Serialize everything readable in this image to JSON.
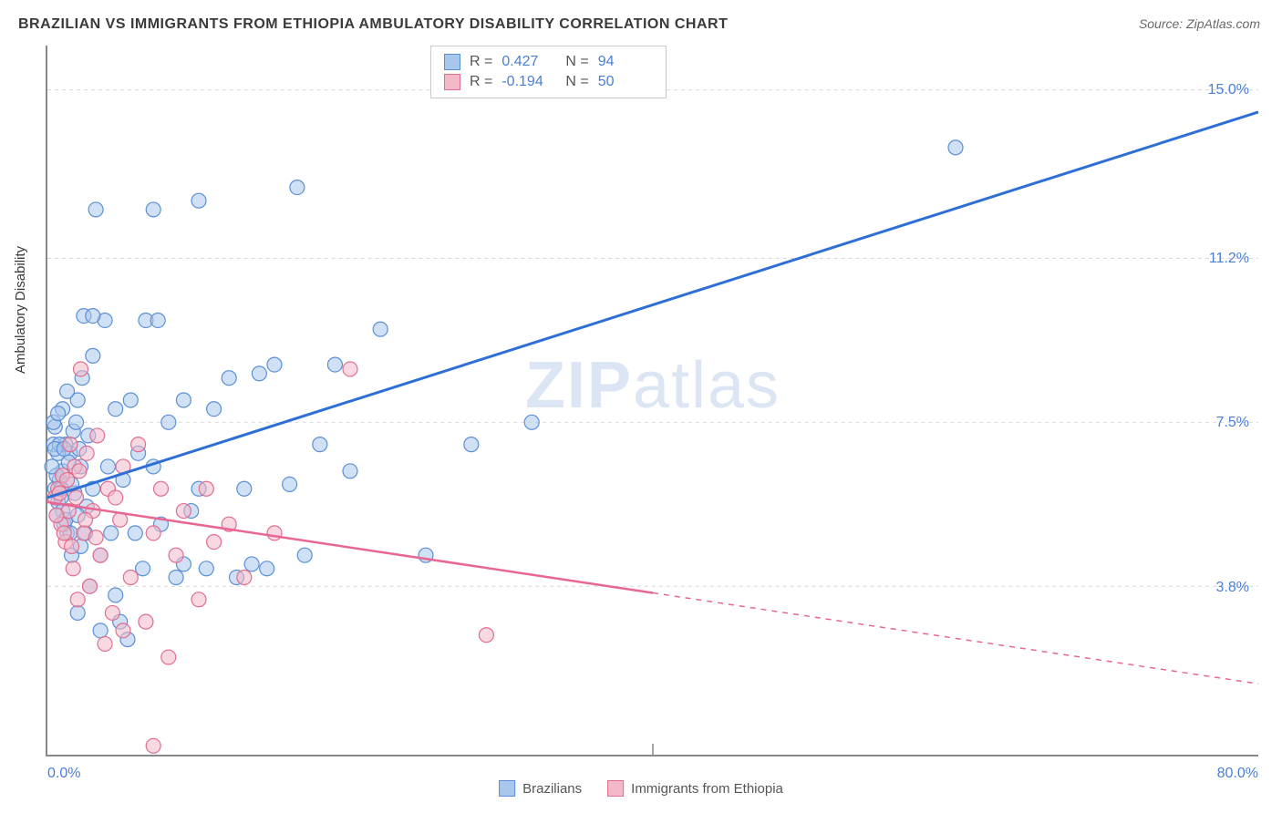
{
  "title": "BRAZILIAN VS IMMIGRANTS FROM ETHIOPIA AMBULATORY DISABILITY CORRELATION CHART",
  "source": "Source: ZipAtlas.com",
  "y_axis_label": "Ambulatory Disability",
  "watermark_a": "ZIP",
  "watermark_b": "atlas",
  "chart": {
    "type": "scatter",
    "xlim": [
      0,
      80
    ],
    "ylim": [
      0,
      16
    ],
    "x_ticks": [
      0,
      40,
      80
    ],
    "x_tick_labels": [
      "0.0%",
      "",
      "80.0%"
    ],
    "y_ticks": [
      3.8,
      7.5,
      11.2,
      15.0
    ],
    "y_tick_labels": [
      "3.8%",
      "7.5%",
      "11.2%",
      "15.0%"
    ],
    "grid_color": "#d5d5d5",
    "background_color": "#ffffff",
    "axis_color": "#888888",
    "label_color": "#4a7fd6",
    "series": [
      {
        "name": "Brazilians",
        "color_fill": "#a9c6ec",
        "color_stroke": "#5b8fd6",
        "marker_radius": 8,
        "opacity": 0.55,
        "regression": {
          "x1": 0,
          "y1": 5.8,
          "x2": 80,
          "y2": 14.5,
          "solid_to_x": 80,
          "color": "#2e6fd6",
          "width": 3
        },
        "R": "0.427",
        "N": "94",
        "points": [
          [
            0.5,
            6.0
          ],
          [
            0.7,
            5.7
          ],
          [
            0.8,
            6.2
          ],
          [
            1.0,
            5.5
          ],
          [
            1.0,
            6.4
          ],
          [
            1.2,
            7.0
          ],
          [
            1.3,
            5.0
          ],
          [
            1.5,
            6.8
          ],
          [
            1.6,
            4.5
          ],
          [
            1.7,
            7.3
          ],
          [
            1.8,
            5.9
          ],
          [
            2.0,
            8.0
          ],
          [
            2.0,
            3.2
          ],
          [
            2.2,
            6.5
          ],
          [
            2.4,
            9.9
          ],
          [
            2.5,
            5.0
          ],
          [
            2.7,
            7.2
          ],
          [
            2.8,
            3.8
          ],
          [
            3.0,
            6.0
          ],
          [
            3.2,
            12.3
          ],
          [
            3.5,
            4.5
          ],
          [
            3.5,
            2.8
          ],
          [
            3.8,
            9.8
          ],
          [
            4.0,
            6.5
          ],
          [
            4.2,
            5.0
          ],
          [
            4.5,
            7.8
          ],
          [
            4.8,
            3.0
          ],
          [
            5.0,
            6.2
          ],
          [
            5.3,
            2.6
          ],
          [
            5.5,
            8.0
          ],
          [
            5.8,
            5.0
          ],
          [
            6.0,
            6.8
          ],
          [
            6.3,
            4.2
          ],
          [
            6.5,
            9.8
          ],
          [
            7.0,
            12.3
          ],
          [
            7.0,
            6.5
          ],
          [
            7.5,
            5.2
          ],
          [
            8.0,
            7.5
          ],
          [
            8.5,
            4.0
          ],
          [
            9.0,
            8.0
          ],
          [
            9.5,
            5.5
          ],
          [
            10.0,
            12.5
          ],
          [
            10.0,
            6.0
          ],
          [
            10.5,
            4.2
          ],
          [
            11.0,
            7.8
          ],
          [
            12.0,
            8.5
          ],
          [
            12.5,
            4.0
          ],
          [
            13.0,
            6.0
          ],
          [
            14.0,
            8.6
          ],
          [
            14.5,
            4.2
          ],
          [
            15.0,
            8.8
          ],
          [
            16.0,
            6.1
          ],
          [
            16.5,
            12.8
          ],
          [
            17.0,
            4.5
          ],
          [
            18.0,
            7.0
          ],
          [
            19.0,
            8.8
          ],
          [
            20.0,
            6.4
          ],
          [
            22.0,
            9.6
          ],
          [
            25.0,
            4.5
          ],
          [
            28.0,
            7.0
          ],
          [
            32.0,
            7.5
          ],
          [
            60.0,
            13.7
          ],
          [
            1.1,
            5.2
          ],
          [
            1.4,
            6.6
          ],
          [
            0.6,
            6.3
          ],
          [
            0.9,
            5.8
          ],
          [
            1.6,
            6.1
          ],
          [
            2.1,
            6.9
          ],
          [
            2.6,
            5.6
          ],
          [
            0.4,
            7.0
          ],
          [
            0.5,
            7.4
          ],
          [
            0.7,
            6.8
          ],
          [
            0.3,
            6.5
          ],
          [
            0.8,
            7.0
          ],
          [
            1.0,
            7.8
          ],
          [
            0.6,
            5.4
          ],
          [
            1.3,
            8.2
          ],
          [
            1.9,
            7.5
          ],
          [
            2.3,
            8.5
          ],
          [
            0.5,
            6.9
          ],
          [
            0.9,
            6.0
          ],
          [
            1.2,
            5.3
          ],
          [
            3.0,
            9.9
          ],
          [
            1.5,
            5.0
          ],
          [
            2.2,
            4.7
          ],
          [
            3.0,
            9.0
          ],
          [
            4.5,
            3.6
          ],
          [
            0.4,
            7.5
          ],
          [
            0.7,
            7.7
          ],
          [
            1.1,
            6.9
          ],
          [
            7.3,
            9.8
          ],
          [
            9.0,
            4.3
          ],
          [
            13.5,
            4.3
          ],
          [
            2.0,
            5.4
          ]
        ]
      },
      {
        "name": "Immigrants from Ethiopia",
        "color_fill": "#f3b9c9",
        "color_stroke": "#e06e90",
        "marker_radius": 8,
        "opacity": 0.55,
        "regression": {
          "x1": 0,
          "y1": 5.7,
          "x2": 80,
          "y2": 1.6,
          "solid_to_x": 40,
          "color": "#e96693",
          "width": 2.5
        },
        "R": "-0.194",
        "N": "50",
        "points": [
          [
            0.5,
            5.8
          ],
          [
            0.7,
            6.0
          ],
          [
            0.9,
            5.2
          ],
          [
            1.0,
            6.3
          ],
          [
            1.2,
            4.8
          ],
          [
            1.4,
            5.5
          ],
          [
            1.5,
            7.0
          ],
          [
            1.7,
            4.2
          ],
          [
            1.8,
            6.5
          ],
          [
            2.0,
            3.5
          ],
          [
            2.2,
            8.7
          ],
          [
            2.4,
            5.0
          ],
          [
            2.6,
            6.8
          ],
          [
            2.8,
            3.8
          ],
          [
            3.0,
            5.5
          ],
          [
            3.3,
            7.2
          ],
          [
            3.5,
            4.5
          ],
          [
            3.8,
            2.5
          ],
          [
            4.0,
            6.0
          ],
          [
            4.3,
            3.2
          ],
          [
            4.5,
            5.8
          ],
          [
            5.0,
            6.5
          ],
          [
            5.0,
            2.8
          ],
          [
            5.5,
            4.0
          ],
          [
            6.0,
            7.0
          ],
          [
            6.5,
            3.0
          ],
          [
            7.0,
            5.0
          ],
          [
            7.5,
            6.0
          ],
          [
            8.0,
            2.2
          ],
          [
            8.5,
            4.5
          ],
          [
            9.0,
            5.5
          ],
          [
            10.0,
            3.5
          ],
          [
            10.5,
            6.0
          ],
          [
            11.0,
            4.8
          ],
          [
            12.0,
            5.2
          ],
          [
            13.0,
            4.0
          ],
          [
            15.0,
            5.0
          ],
          [
            20.0,
            8.7
          ],
          [
            29.0,
            2.7
          ],
          [
            7.0,
            0.2
          ],
          [
            0.6,
            5.4
          ],
          [
            0.8,
            5.9
          ],
          [
            1.1,
            5.0
          ],
          [
            1.3,
            6.2
          ],
          [
            1.6,
            4.7
          ],
          [
            1.9,
            5.8
          ],
          [
            2.1,
            6.4
          ],
          [
            2.5,
            5.3
          ],
          [
            3.2,
            4.9
          ],
          [
            4.8,
            5.3
          ]
        ]
      }
    ]
  },
  "stats_box": {
    "r_label": "R =",
    "n_label": "N ="
  },
  "bottom_legend": {
    "items": [
      "Brazilians",
      "Immigrants from Ethiopia"
    ]
  }
}
